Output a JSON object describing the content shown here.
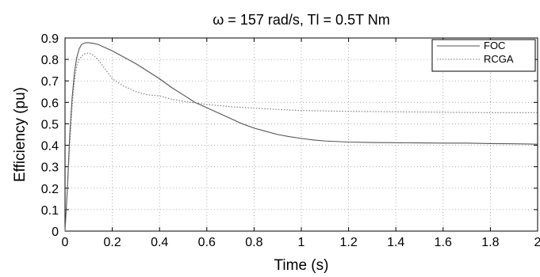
{
  "chart_data": {
    "type": "line",
    "title": "ω = 157 rad/s, Tl = 0.5T Nm",
    "xlabel": "Time (s)",
    "ylabel": "Efficiency (pu)",
    "xlim": [
      0,
      2
    ],
    "ylim": [
      0,
      0.9
    ],
    "xticks": [
      0,
      0.2,
      0.4,
      0.6,
      0.8,
      1,
      1.2,
      1.4,
      1.6,
      1.8,
      2
    ],
    "xtick_labels": [
      "0",
      "0.2",
      "0.4",
      "0.6",
      "0.8",
      "1",
      "1.2",
      "1.4",
      "1.6",
      "1.8",
      "2"
    ],
    "yticks": [
      0,
      0.1,
      0.2,
      0.3,
      0.4,
      0.5,
      0.6,
      0.7,
      0.8,
      0.9
    ],
    "ytick_labels": [
      "0",
      "0.1",
      "0.2",
      "0.3",
      "0.4",
      "0.5",
      "0.6",
      "0.7",
      "0.8",
      "0.9"
    ],
    "grid": true,
    "legend_position": "top-right",
    "series": [
      {
        "name": "FOC",
        "line_style": "solid",
        "color": "#555555",
        "x": [
          0,
          0.01,
          0.02,
          0.03,
          0.04,
          0.05,
          0.06,
          0.07,
          0.08,
          0.09,
          0.1,
          0.12,
          0.14,
          0.16,
          0.2,
          0.25,
          0.3,
          0.35,
          0.4,
          0.45,
          0.5,
          0.55,
          0.6,
          0.65,
          0.7,
          0.75,
          0.8,
          0.85,
          0.9,
          0.95,
          1.0,
          1.05,
          1.1,
          1.2,
          1.3,
          1.4,
          1.5,
          1.6,
          1.7,
          1.8,
          1.9,
          2.0
        ],
        "y": [
          0.0,
          0.2,
          0.45,
          0.62,
          0.74,
          0.81,
          0.85,
          0.87,
          0.875,
          0.878,
          0.878,
          0.875,
          0.87,
          0.86,
          0.84,
          0.81,
          0.78,
          0.745,
          0.71,
          0.67,
          0.635,
          0.6,
          0.575,
          0.55,
          0.525,
          0.5,
          0.48,
          0.465,
          0.45,
          0.44,
          0.432,
          0.425,
          0.42,
          0.415,
          0.413,
          0.412,
          0.411,
          0.41,
          0.41,
          0.408,
          0.407,
          0.405
        ]
      },
      {
        "name": "RCGA",
        "line_style": "dotted",
        "color": "#777777",
        "x": [
          0,
          0.01,
          0.02,
          0.03,
          0.04,
          0.05,
          0.06,
          0.07,
          0.08,
          0.09,
          0.1,
          0.12,
          0.14,
          0.16,
          0.18,
          0.2,
          0.25,
          0.3,
          0.35,
          0.4,
          0.45,
          0.5,
          0.6,
          0.7,
          0.8,
          0.9,
          1.0,
          1.2,
          1.4,
          1.6,
          1.8,
          2.0
        ],
        "y": [
          0.0,
          0.18,
          0.4,
          0.58,
          0.7,
          0.77,
          0.8,
          0.815,
          0.825,
          0.828,
          0.83,
          0.82,
          0.8,
          0.77,
          0.74,
          0.71,
          0.675,
          0.65,
          0.635,
          0.63,
          0.615,
          0.605,
          0.59,
          0.58,
          0.573,
          0.567,
          0.562,
          0.558,
          0.556,
          0.554,
          0.552,
          0.552
        ]
      }
    ]
  }
}
